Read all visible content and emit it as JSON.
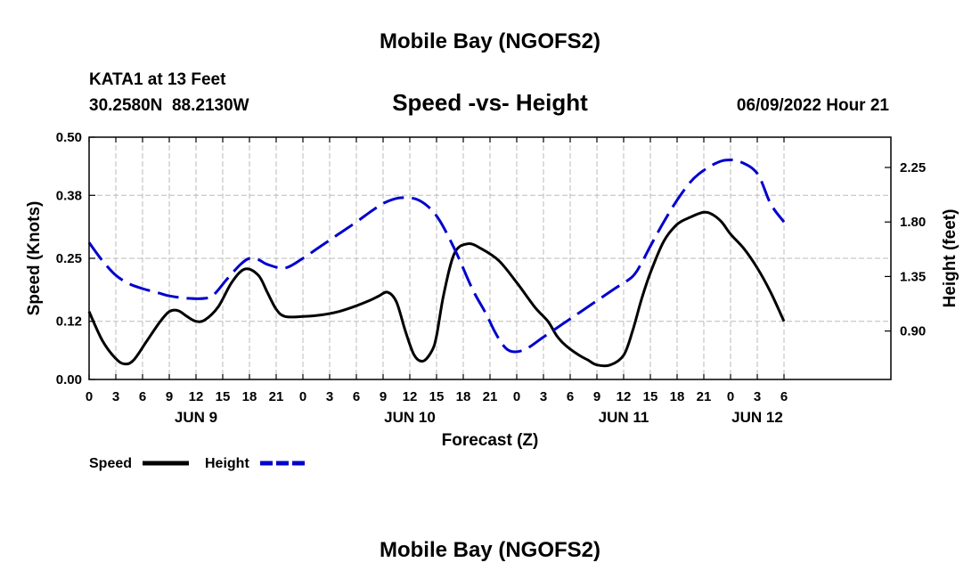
{
  "chart_data": {
    "type": "line",
    "title": "Mobile Bay (NGOFS2)",
    "subtitle": "Speed -vs- Height",
    "station": "KATA1 at 13 Feet",
    "coordinates": "30.2580N  88.2130W",
    "datetime": "06/09/2022 Hour 21",
    "footer_title": "Mobile Bay (NGOFS2)",
    "xlabel": "Forecast (Z)",
    "ylabel_left": "Speed (Knots)",
    "ylabel_right": "Height (feet)",
    "x_range_hours": [
      0,
      90
    ],
    "x_ticks": [
      {
        "h": 0,
        "label": "0"
      },
      {
        "h": 3,
        "label": "3"
      },
      {
        "h": 6,
        "label": "6"
      },
      {
        "h": 9,
        "label": "9"
      },
      {
        "h": 12,
        "label": "12"
      },
      {
        "h": 15,
        "label": "15"
      },
      {
        "h": 18,
        "label": "18"
      },
      {
        "h": 21,
        "label": "21"
      },
      {
        "h": 24,
        "label": "0"
      },
      {
        "h": 27,
        "label": "3"
      },
      {
        "h": 30,
        "label": "6"
      },
      {
        "h": 33,
        "label": "9"
      },
      {
        "h": 36,
        "label": "12"
      },
      {
        "h": 39,
        "label": "15"
      },
      {
        "h": 42,
        "label": "18"
      },
      {
        "h": 45,
        "label": "21"
      },
      {
        "h": 48,
        "label": "0"
      },
      {
        "h": 51,
        "label": "3"
      },
      {
        "h": 54,
        "label": "6"
      },
      {
        "h": 57,
        "label": "9"
      },
      {
        "h": 60,
        "label": "12"
      },
      {
        "h": 63,
        "label": "15"
      },
      {
        "h": 66,
        "label": "18"
      },
      {
        "h": 69,
        "label": "21"
      },
      {
        "h": 72,
        "label": "0"
      },
      {
        "h": 75,
        "label": "3"
      },
      {
        "h": 78,
        "label": "6"
      }
    ],
    "day_labels": [
      {
        "h": 12,
        "label": "JUN 9"
      },
      {
        "h": 36,
        "label": "JUN 10"
      },
      {
        "h": 60,
        "label": "JUN 11"
      },
      {
        "h": 75,
        "label": "JUN 12"
      }
    ],
    "y_left": {
      "min": 0,
      "max": 0.5,
      "ticks": [
        "0.00",
        "0.12",
        "0.25",
        "0.38",
        "0.50"
      ]
    },
    "y_right": {
      "min": 0.5,
      "max": 2.5,
      "ticks": [
        "0.90",
        "1.35",
        "1.80",
        "2.25"
      ]
    },
    "grid": true,
    "legend": [
      {
        "name": "Speed",
        "color": "#000000",
        "style": "solid"
      },
      {
        "name": "Height",
        "color": "#0000cc",
        "style": "dashed"
      }
    ],
    "series": [
      {
        "name": "Speed",
        "axis": "left",
        "color": "#000000",
        "x": [
          0,
          1.5,
          3,
          4,
          5,
          6.5,
          8,
          9,
          10,
          11,
          12,
          13,
          14.5,
          16,
          17.5,
          19,
          20,
          21,
          22,
          24,
          26,
          28,
          30,
          31.5,
          32.5,
          33.5,
          34.5,
          35.5,
          36.5,
          37.5,
          38.5,
          39,
          39.8,
          41,
          42.5,
          44,
          46,
          48,
          50,
          51.5,
          52.5,
          53.5,
          55,
          56,
          57,
          58.5,
          60,
          61,
          62,
          63,
          64.5,
          66,
          67.5,
          69,
          70,
          71,
          72,
          73.5,
          75,
          76.5,
          78
        ],
        "values": [
          0.14,
          0.08,
          0.043,
          0.032,
          0.04,
          0.08,
          0.12,
          0.14,
          0.142,
          0.13,
          0.12,
          0.123,
          0.15,
          0.2,
          0.228,
          0.215,
          0.18,
          0.145,
          0.13,
          0.13,
          0.133,
          0.14,
          0.152,
          0.163,
          0.172,
          0.18,
          0.16,
          0.1,
          0.05,
          0.038,
          0.06,
          0.09,
          0.175,
          0.26,
          0.28,
          0.27,
          0.245,
          0.2,
          0.15,
          0.12,
          0.09,
          0.07,
          0.05,
          0.04,
          0.03,
          0.03,
          0.05,
          0.1,
          0.165,
          0.22,
          0.285,
          0.32,
          0.335,
          0.345,
          0.34,
          0.325,
          0.3,
          0.27,
          0.23,
          0.18,
          0.12
        ]
      },
      {
        "name": "Height",
        "axis": "right",
        "color": "#0000cc",
        "x": [
          0,
          1.5,
          3,
          4.5,
          6,
          8,
          9,
          11,
          13,
          14,
          15.5,
          17,
          18,
          19,
          20,
          22,
          24,
          26,
          28,
          30,
          31.5,
          32.5,
          33.5,
          35,
          37,
          39,
          41,
          43,
          44.5,
          45.5,
          46.5,
          47.5,
          49,
          51,
          53,
          55,
          57,
          59,
          61,
          62,
          63,
          64.5,
          66,
          67.5,
          68.5,
          69.5,
          70.5,
          71.5,
          73,
          75,
          76.5,
          78
        ],
        "values": [
          1.63,
          1.48,
          1.36,
          1.29,
          1.25,
          1.21,
          1.19,
          1.17,
          1.17,
          1.2,
          1.33,
          1.45,
          1.5,
          1.49,
          1.45,
          1.42,
          1.5,
          1.6,
          1.7,
          1.8,
          1.88,
          1.93,
          1.97,
          2.0,
          1.98,
          1.85,
          1.58,
          1.25,
          1.05,
          0.9,
          0.78,
          0.73,
          0.75,
          0.85,
          0.95,
          1.05,
          1.15,
          1.25,
          1.35,
          1.46,
          1.6,
          1.8,
          1.98,
          2.13,
          2.2,
          2.25,
          2.29,
          2.31,
          2.3,
          2.2,
          1.95,
          1.8
        ]
      }
    ]
  }
}
